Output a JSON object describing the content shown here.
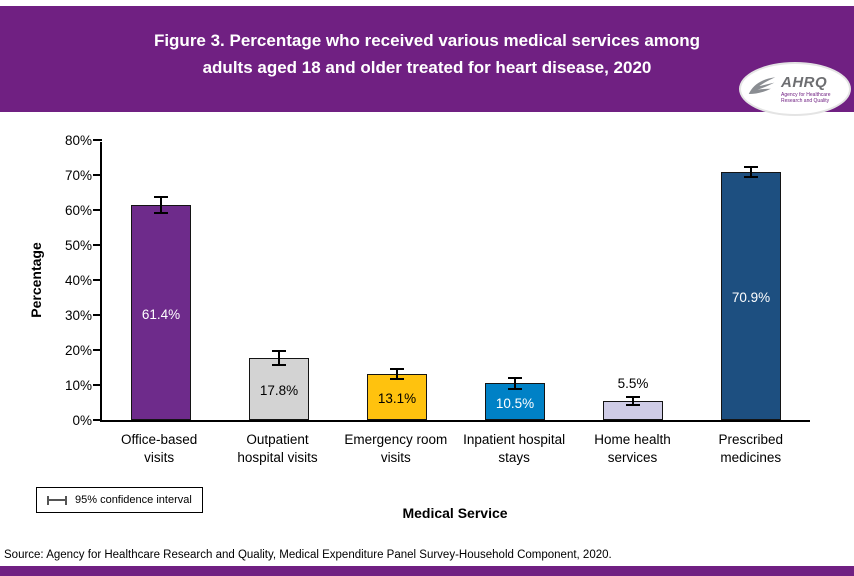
{
  "header": {
    "title_line1": "Figure 3. Percentage who received various medical services among",
    "title_line2": "adults aged 18 and older treated for heart disease, 2020",
    "bg_color": "#702082"
  },
  "logo": {
    "name": "AHRQ",
    "tagline": "Agency for Healthcare Research and Quality"
  },
  "chart_data": {
    "type": "bar",
    "title": "Figure 3. Percentage who received various medical services among adults aged 18 and older treated for heart disease, 2020",
    "categories": [
      "Office-based visits",
      "Outpatient hospital visits",
      "Emergency room visits",
      "Inpatient hospital stays",
      "Home health services",
      "Prescribed medicines"
    ],
    "values": [
      61.4,
      17.8,
      13.1,
      10.5,
      5.5,
      70.9
    ],
    "value_labels": [
      "61.4%",
      "17.8%",
      "13.1%",
      "10.5%",
      "5.5%",
      "70.9%"
    ],
    "ci_halfwidth": [
      2.5,
      2.3,
      1.8,
      1.8,
      1.5,
      1.8
    ],
    "bar_colors": [
      "#6E2B8B",
      "#D3D3D3",
      "#FFC20E",
      "#0081C6",
      "#CFCCE6",
      "#1D4F80"
    ],
    "label_colors": [
      "#FFFFFF",
      "#000000",
      "#000000",
      "#FFFFFF",
      "#000000",
      "#FFFFFF"
    ],
    "label_inside": [
      true,
      true,
      true,
      true,
      false,
      true
    ],
    "xlabel": "Medical Service",
    "ylabel": "Percentage",
    "ylim": [
      0,
      80
    ],
    "ytick_step": 10,
    "yticks": [
      "0%",
      "10%",
      "20%",
      "30%",
      "40%",
      "50%",
      "60%",
      "70%",
      "80%"
    ],
    "grid": false,
    "legend_label": "95% confidence interval",
    "legend_position": "bottom-left"
  },
  "footer": {
    "source": "Source: Agency for Healthcare Research and Quality, Medical Expenditure Panel Survey-Household Component, 2020."
  }
}
